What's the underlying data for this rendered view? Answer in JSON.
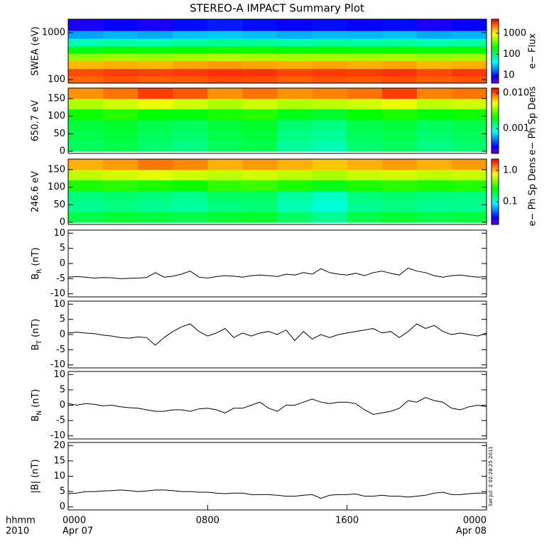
{
  "chart_data": [
    {
      "type": "heatmap",
      "title": "STEREO-A IMPACT Summary Plot",
      "ylabel": "SWEA (eV)",
      "ylog": true,
      "ylim": [
        84,
        1940
      ],
      "yticks": [
        100,
        1000
      ],
      "x_bins": [
        0,
        2,
        4,
        6,
        8,
        10,
        12,
        14,
        16,
        18,
        20,
        22,
        24
      ],
      "y_bins": [
        84,
        120,
        170,
        250,
        360,
        520,
        750,
        1100,
        1940
      ],
      "z": [
        [
          2500,
          2800,
          2600,
          2700,
          3000,
          2900,
          2600,
          2800,
          2700,
          2900,
          2600,
          2800
        ],
        [
          3000,
          3200,
          3100,
          3300,
          3500,
          3400,
          3100,
          3300,
          3200,
          3400,
          3000,
          3300
        ],
        [
          1500,
          1600,
          1500,
          1700,
          1800,
          1700,
          1600,
          1700,
          1600,
          1700,
          1500,
          1600
        ],
        [
          500,
          550,
          520,
          560,
          600,
          580,
          540,
          560,
          550,
          570,
          520,
          550
        ],
        [
          180,
          200,
          190,
          210,
          230,
          220,
          200,
          210,
          200,
          210,
          190,
          200
        ],
        [
          70,
          75,
          72,
          80,
          85,
          82,
          75,
          80,
          78,
          80,
          72,
          76
        ],
        [
          25,
          28,
          26,
          30,
          32,
          30,
          27,
          29,
          28,
          30,
          26,
          28
        ],
        [
          8,
          9,
          8,
          10,
          11,
          10,
          9,
          10,
          9,
          10,
          8,
          9
        ]
      ],
      "colormap": "rainbow",
      "clog": true,
      "clim": [
        4.3,
        4640
      ],
      "cticks": [
        10,
        100,
        1000
      ],
      "clabel": "e− Flux"
    },
    {
      "type": "heatmap",
      "ylabel": "650.7 eV",
      "ylim": [
        -6,
        180
      ],
      "yticks": [
        0,
        50,
        100,
        150
      ],
      "x_bins": [
        0,
        2,
        4,
        6,
        8,
        10,
        12,
        14,
        16,
        18,
        20,
        22,
        24
      ],
      "y_bins": [
        0,
        30,
        60,
        90,
        120,
        150,
        180
      ],
      "z": [
        [
          0.0015,
          0.0016,
          0.0014,
          0.0013,
          0.0015,
          0.0016,
          0.0012,
          0.0011,
          0.0014,
          0.0015,
          0.0013,
          0.0014
        ],
        [
          0.0016,
          0.0017,
          0.0015,
          0.0014,
          0.0016,
          0.0017,
          0.0013,
          0.0012,
          0.0015,
          0.0016,
          0.0014,
          0.0015
        ],
        [
          0.0017,
          0.0018,
          0.0016,
          0.0015,
          0.0017,
          0.0018,
          0.0014,
          0.0013,
          0.0016,
          0.0017,
          0.0015,
          0.0016
        ],
        [
          0.0022,
          0.0024,
          0.0021,
          0.002,
          0.0023,
          0.0024,
          0.0019,
          0.0018,
          0.0021,
          0.0023,
          0.002,
          0.0022
        ],
        [
          0.004,
          0.0045,
          0.005,
          0.0045,
          0.004,
          0.0045,
          0.004,
          0.0042,
          0.0045,
          0.005,
          0.0042,
          0.0045
        ],
        [
          0.008,
          0.009,
          0.011,
          0.01,
          0.008,
          0.009,
          0.008,
          0.0085,
          0.009,
          0.011,
          0.0085,
          0.009
        ]
      ],
      "colormap": "rainbow",
      "clog": true,
      "clim": [
        0.0002,
        0.0138
      ],
      "cticks": [
        {
          "value": 0.01,
          "label": "0.010"
        },
        0.001
      ],
      "clabel": "e− Ph Sp Dens"
    },
    {
      "type": "heatmap",
      "ylabel": "246.6 eV",
      "ylim": [
        -6,
        180
      ],
      "yticks": [
        0,
        50,
        100,
        150
      ],
      "x_bins": [
        0,
        2,
        4,
        6,
        8,
        10,
        12,
        14,
        16,
        18,
        20,
        22,
        24
      ],
      "y_bins": [
        0,
        30,
        60,
        90,
        120,
        150,
        180
      ],
      "z": [
        [
          0.2,
          0.22,
          0.21,
          0.2,
          0.22,
          0.23,
          0.18,
          0.15,
          0.2,
          0.22,
          0.2,
          0.21
        ],
        [
          0.15,
          0.16,
          0.15,
          0.14,
          0.16,
          0.17,
          0.13,
          0.11,
          0.15,
          0.16,
          0.15,
          0.15
        ],
        [
          0.16,
          0.17,
          0.16,
          0.15,
          0.18,
          0.18,
          0.14,
          0.12,
          0.16,
          0.17,
          0.16,
          0.16
        ],
        [
          0.3,
          0.32,
          0.3,
          0.28,
          0.33,
          0.34,
          0.3,
          0.25,
          0.3,
          0.32,
          0.3,
          0.31
        ],
        [
          0.6,
          0.65,
          0.7,
          0.65,
          0.6,
          0.65,
          0.6,
          0.55,
          0.62,
          0.65,
          0.6,
          0.62
        ],
        [
          1.1,
          1.2,
          1.4,
          1.3,
          1.1,
          1.2,
          1.1,
          1.0,
          1.1,
          1.2,
          1.1,
          1.2
        ]
      ],
      "colormap": "rainbow",
      "clog": true,
      "clim": [
        0.0188,
        2.3
      ],
      "cticks": [
        {
          "value": 1,
          "label": "1.0"
        },
        0.1
      ],
      "clabel": "e− Ph Sp Dens"
    },
    {
      "type": "line",
      "ylabel": "B",
      "ylabel_sub": "R",
      "ylabel_unit": "(nT)",
      "ylim": [
        -11,
        11
      ],
      "yticks": [
        -10,
        -5,
        0,
        5,
        10
      ],
      "color": "#000000",
      "x": [
        0,
        0.5,
        1,
        1.5,
        2,
        2.5,
        3,
        3.5,
        4,
        4.5,
        5,
        5.5,
        6,
        6.5,
        7,
        7.5,
        8,
        8.5,
        9,
        9.5,
        10,
        10.5,
        11,
        11.5,
        12,
        12.5,
        13,
        13.5,
        14,
        14.5,
        15,
        15.5,
        16,
        16.5,
        17,
        17.5,
        18,
        18.5,
        19,
        19.5,
        20,
        20.5,
        21,
        21.5,
        22,
        22.5,
        23,
        23.5,
        24
      ],
      "values": [
        -4.5,
        -4.3,
        -4.5,
        -4.8,
        -4.6,
        -4.7,
        -5,
        -4.9,
        -4.8,
        -4.6,
        -3,
        -4.5,
        -4.2,
        -3.5,
        -2.5,
        -4.5,
        -4.8,
        -4.3,
        -4,
        -4.2,
        -4.5,
        -4,
        -3.8,
        -4,
        -4.3,
        -3.5,
        -3.8,
        -3,
        -3.5,
        -1.7,
        -3,
        -3.5,
        -3.8,
        -3.2,
        -4,
        -3,
        -2.5,
        -3.2,
        -3.8,
        -1.5,
        -2.5,
        -3,
        -4,
        -4.5,
        -4,
        -3.8,
        -4.2,
        -4.5,
        -4.3
      ]
    },
    {
      "type": "line",
      "ylabel": "B",
      "ylabel_sub": "T",
      "ylabel_unit": "(nT)",
      "ylim": [
        -11,
        11
      ],
      "yticks": [
        -10,
        -5,
        0,
        5,
        10
      ],
      "color": "#000000",
      "x": [
        0,
        0.5,
        1,
        1.5,
        2,
        2.5,
        3,
        3.5,
        4,
        4.5,
        5,
        5.5,
        6,
        6.5,
        7,
        7.5,
        8,
        8.5,
        9,
        9.5,
        10,
        10.5,
        11,
        11.5,
        12,
        12.5,
        13,
        13.5,
        14,
        14.5,
        15,
        15.5,
        16,
        16.5,
        17,
        17.5,
        18,
        18.5,
        19,
        19.5,
        20,
        20.5,
        21,
        21.5,
        22,
        22.5,
        23,
        23.5,
        24
      ],
      "values": [
        0.5,
        0.8,
        0.5,
        0.3,
        -0.2,
        -0.5,
        -1,
        -1.2,
        -0.8,
        -1,
        -3.5,
        -1,
        1,
        2.5,
        3.5,
        1,
        -0.5,
        0.5,
        2,
        -1,
        0.5,
        -0.5,
        0.5,
        1,
        0,
        1.5,
        -2,
        1,
        -1.5,
        0,
        -1,
        0,
        0.5,
        1,
        1.5,
        2,
        0.5,
        1,
        -1,
        1,
        3.5,
        2,
        3,
        1,
        0,
        0.5,
        0,
        -0.5,
        0.5
      ]
    },
    {
      "type": "line",
      "ylabel": "B",
      "ylabel_sub": "N",
      "ylabel_unit": "(nT)",
      "ylim": [
        -11,
        11
      ],
      "yticks": [
        -10,
        -5,
        0,
        5,
        10
      ],
      "color": "#000000",
      "x": [
        0,
        0.5,
        1,
        1.5,
        2,
        2.5,
        3,
        3.5,
        4,
        4.5,
        5,
        5.5,
        6,
        6.5,
        7,
        7.5,
        8,
        8.5,
        9,
        9.5,
        10,
        10.5,
        11,
        11.5,
        12,
        12.5,
        13,
        13.5,
        14,
        14.5,
        15,
        15.5,
        16,
        16.5,
        17,
        17.5,
        18,
        18.5,
        19,
        19.5,
        20,
        20.5,
        21,
        21.5,
        22,
        22.5,
        23,
        23.5,
        24
      ],
      "values": [
        0.5,
        0,
        0.5,
        0.3,
        -0.2,
        0,
        -0.5,
        -0.8,
        -1,
        -1.5,
        -2,
        -2,
        -1.5,
        -1.5,
        -2,
        -1.2,
        -1,
        -1.5,
        -2.5,
        -1,
        -1,
        0,
        1,
        -1,
        -2,
        0,
        0,
        1,
        2,
        1,
        0.5,
        1,
        1,
        0.5,
        -1.5,
        -3,
        -2.5,
        -2,
        -1,
        1.5,
        1,
        2.5,
        1.5,
        1,
        -1,
        -1.5,
        -0.5,
        0,
        -0.5
      ]
    },
    {
      "type": "line",
      "ylabel": "|B| (nT)",
      "ylim": [
        -1,
        21
      ],
      "yticks": [
        0,
        5,
        10,
        15,
        20
      ],
      "color": "#000000",
      "x": [
        0,
        0.5,
        1,
        1.5,
        2,
        2.5,
        3,
        3.5,
        4,
        4.5,
        5,
        5.5,
        6,
        6.5,
        7,
        7.5,
        8,
        8.5,
        9,
        9.5,
        10,
        10.5,
        11,
        11.5,
        12,
        12.5,
        13,
        13.5,
        14,
        14.5,
        15,
        15.5,
        16,
        16.5,
        17,
        17.5,
        18,
        18.5,
        19,
        19.5,
        20,
        20.5,
        21,
        21.5,
        22,
        22.5,
        23,
        23.5,
        24
      ],
      "values": [
        4.3,
        4.5,
        5,
        5,
        5.2,
        5.3,
        5.5,
        5.3,
        5,
        5.2,
        5.5,
        5.5,
        5.3,
        5,
        5,
        4.8,
        4.8,
        4.5,
        4.3,
        4.5,
        4.5,
        4,
        4,
        4,
        3.8,
        3.5,
        3.5,
        3.8,
        4,
        2.8,
        3.8,
        4,
        4,
        4.2,
        3.5,
        3.5,
        3.8,
        3.5,
        3.5,
        3.2,
        3.5,
        3.8,
        4.5,
        4.8,
        4,
        4,
        4.3,
        4.5,
        4.5
      ],
      "xlim": [
        0,
        24
      ],
      "xticks": [
        {
          "value": 0,
          "label": "0000"
        },
        {
          "value": 8,
          "label": "0800"
        },
        {
          "value": 16,
          "label": "1600"
        },
        {
          "value": 24,
          "label": "0000"
        }
      ],
      "xdates": [
        {
          "value": 0,
          "label": "Apr 07"
        },
        {
          "value": 24,
          "label": "Apr 08"
        }
      ],
      "xlabel": "hhmm",
      "xlabel_year": "2010",
      "annotation": "Sat Jul  2 02:28:25 2011"
    }
  ]
}
